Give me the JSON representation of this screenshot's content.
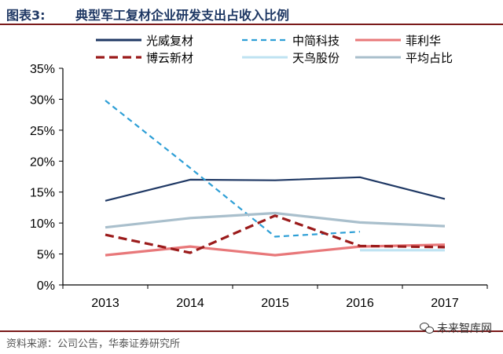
{
  "figure": {
    "number": "图表3:",
    "title": "典型军工复材企业研发支出占收入比例"
  },
  "source": "资料来源：公司公告，华泰证券研究所",
  "watermark": "未来智库网",
  "chart_data": {
    "type": "line",
    "categories": [
      "2013",
      "2014",
      "2015",
      "2016",
      "2017"
    ],
    "ylim": [
      0,
      35
    ],
    "yticks": [
      0,
      5,
      10,
      15,
      20,
      25,
      30,
      35
    ],
    "ytick_labels": [
      "0%",
      "5%",
      "10%",
      "15%",
      "20%",
      "25%",
      "30%",
      "35%"
    ],
    "grid": false,
    "legend_position": "top",
    "series": [
      {
        "name": "光威复材",
        "values": [
          13.6,
          17.0,
          16.9,
          17.4,
          13.9
        ],
        "color": "#1f3864",
        "style": "solid"
      },
      {
        "name": "中简科技",
        "values": [
          29.8,
          18.9,
          7.8,
          8.6,
          null
        ],
        "color": "#2e9fd6",
        "style": "dashed"
      },
      {
        "name": "菲利华",
        "values": [
          4.8,
          6.2,
          4.8,
          6.2,
          6.5
        ],
        "color": "#e8787a",
        "style": "solid"
      },
      {
        "name": "博云新材",
        "values": [
          8.1,
          5.2,
          11.2,
          6.3,
          6.1
        ],
        "color": "#9b1b1b",
        "style": "dashed"
      },
      {
        "name": "天鸟股份",
        "values": [
          null,
          null,
          null,
          5.6,
          5.6
        ],
        "color": "#bfe3f2",
        "style": "solid"
      },
      {
        "name": "平均占比",
        "values": [
          9.3,
          10.8,
          11.6,
          10.1,
          9.5
        ],
        "color": "#a9bfcc",
        "style": "solid"
      }
    ]
  }
}
